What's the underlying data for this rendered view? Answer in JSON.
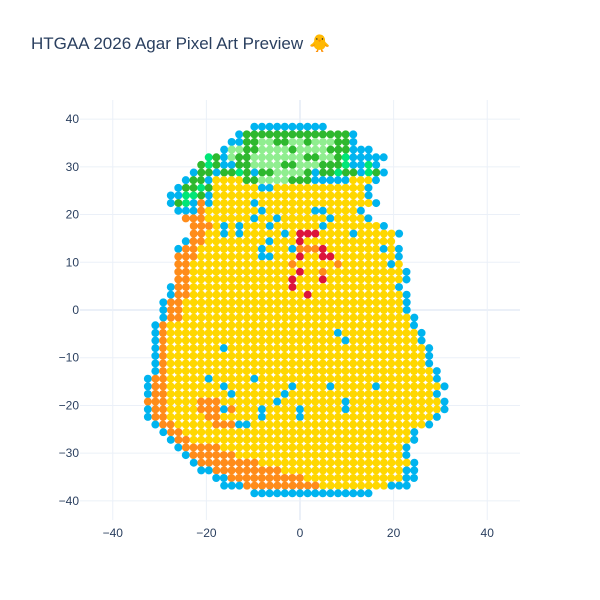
{
  "title": "HTGAA 2026 Agar Pixel Art Preview",
  "title_emoji": "🐥",
  "chart_data": {
    "type": "scatter",
    "title": "HTGAA 2026 Agar Pixel Art Preview",
    "xlabel": "",
    "ylabel": "",
    "xlim": [
      -47,
      47
    ],
    "ylim": [
      -44,
      44
    ],
    "xticks": [
      -40,
      -20,
      0,
      20,
      40
    ],
    "yticks": [
      -40,
      -30,
      -20,
      -10,
      0,
      10,
      20,
      30,
      40
    ],
    "grid": true,
    "grid_step": 1.625,
    "palette": {
      "B": "#00b4ef",
      "Y": "#ffd700",
      "O": "#ff8c1a",
      "R": "#dc143c",
      "G": "#2eb82e",
      "L": "#90ee90",
      "S": "#00e676"
    },
    "colors_legend": {
      "B": "deep sky blue",
      "Y": "gold",
      "O": "orange",
      "R": "crimson",
      "G": "green",
      "L": "light green",
      "S": "spring green"
    },
    "rows": [
      {
        "y": 38.4,
        "x0": -9.75,
        "cells": "BBBBBBBBBB"
      },
      {
        "y": 36.8,
        "x0": -13.0,
        "cells": "BGGGGGGGGGGGGGGB"
      },
      {
        "y": 35.2,
        "x0": -14.6,
        "cells": "BBGGLLGGLLGLLLGGB"
      },
      {
        "y": 33.6,
        "x0": -16.2,
        "cells": "BLLGGLLLLGLLLLGGGBBB"
      },
      {
        "y": 32.0,
        "x0": -19.5,
        "cells": "SGBLGGLLLLLLLGGLLGSBBBBB"
      },
      {
        "y": 30.4,
        "x0": -21.1,
        "cells": "GSGBBGGLLLLGGLLLGGGSBBSB"
      },
      {
        "y": 28.8,
        "x0": -22.7,
        "cells": "BGGBGGSGBGGLLLLGBGGSGGBSGB"
      },
      {
        "y": 27.2,
        "x0": -24.4,
        "cells": "BGGBYYYYGGLLLLGGGBBBBBYYYB"
      },
      {
        "y": 25.6,
        "x0": -26.0,
        "cells": "BGGSGYYYYYYBBYYYYYYYYYYYYB"
      },
      {
        "y": 24.0,
        "x0": -27.6,
        "cells": "BBSSGBYYYYYYYYYYYYYYYYYYYYB"
      },
      {
        "y": 22.4,
        "x0": -27.6,
        "cells": "BGSBOBYYYYYBYYYYYYYYYYYYYYYB"
      },
      {
        "y": 20.8,
        "x0": -26.0,
        "cells": "BBBOYYYYYYYBYYYYYYBBYYYYB"
      },
      {
        "y": 19.2,
        "x0": -24.4,
        "cells": "OOOYYYYYYBYYBYYYYYYBYYYYB"
      },
      {
        "y": 17.6,
        "x0": -22.7,
        "cells": "OOOYBYBYYYBYYYYYYBYYYYYYYB"
      },
      {
        "y": 16.0,
        "x0": -22.7,
        "cells": "OOYYBYBYYYYYBYRRRYYYYBYYYYYB"
      },
      {
        "y": 14.4,
        "x0": -24.4,
        "cells": "BOOYYYYYYYYBYYYRYYYYYYYYYYYY"
      },
      {
        "y": 12.8,
        "x0": -26.0,
        "cells": "BOOYYYYYYYYBYYYBOOORYYYYYYYBYB"
      },
      {
        "y": 11.2,
        "x0": -26.0,
        "cells": "OOOYYYYYYYYBBYYYRYYRRYYYYYYYYB"
      },
      {
        "y": 9.6,
        "x0": -26.0,
        "cells": "OOYYYYYYYYYYYYYOYYYYYOYYYYYYBY"
      },
      {
        "y": 8.0,
        "x0": -26.0,
        "cells": "OOYYYYYYYYYYYYYYRYYOYYYYYYYYYYB"
      },
      {
        "y": 6.4,
        "x0": -26.0,
        "cells": "OOYYYYYYYYYYYYYRYYYRYYYYYYYYYYB"
      },
      {
        "y": 4.8,
        "x0": -27.6,
        "cells": "BOOYYYYYYYYYYYYYRYYYYYYYYYYYYYB"
      },
      {
        "y": 3.2,
        "x0": -27.6,
        "cells": "BOOYYYYYYYYYYYYYYYRYYYYYYYYYYYYB"
      },
      {
        "y": 1.6,
        "x0": -29.2,
        "cells": "BOOYYYYYYYYYYYYYYYYYYYYYYYYYYYYYB"
      },
      {
        "y": 0.0,
        "x0": -29.2,
        "cells": "BOOYYYYYYYYYYYYYYYYYYYYYYYYYYYYYB"
      },
      {
        "y": -1.6,
        "x0": -29.2,
        "cells": "BOOYYYYYYYYYYYYYYYYYYYYYYYYYYYYYYB"
      },
      {
        "y": -3.2,
        "x0": -30.9,
        "cells": "BOYYYYYYYYYYYYYYYYYYYYYYYYYYYYYYYYB"
      },
      {
        "y": -4.8,
        "x0": -30.9,
        "cells": "BOYYYYYYYYYYYYYYYYYYYYYYBYYYYYYYYYYB"
      },
      {
        "y": -6.4,
        "x0": -30.9,
        "cells": "BOYYYYYYYYYYYYYYYYYYYYYYYBYYYYYYYYYB"
      },
      {
        "y": -8.0,
        "x0": -30.9,
        "cells": "BOYYYYYYYBYYYYYYYYYYYYYYYYYYYYYYYYYYB"
      },
      {
        "y": -9.6,
        "x0": -30.9,
        "cells": "BOYYYYYYYYYYYYYYYYYYYYYYYYYYYYYYYYYYB"
      },
      {
        "y": -11.2,
        "x0": -30.9,
        "cells": "BOYYYYYYYYYYYYYYYYYYYYYYYYYYYYYYYYYYB"
      },
      {
        "y": -12.8,
        "x0": -30.9,
        "cells": "BOYYYYYYYYYYYYYYYYYYYYYYYYYYYYYYYYYYYB"
      },
      {
        "y": -14.4,
        "x0": -32.5,
        "cells": "BOOYYYYYBYYYYYBYYYYYYYYYYYYYYYYYYYYYYYB"
      },
      {
        "y": -16.0,
        "x0": -32.5,
        "cells": "BOOYYYYYYYBYYYYYYYYBYYYYBYYYYYBYYYYYYYYB"
      },
      {
        "y": -17.6,
        "x0": -32.5,
        "cells": "BOOYYYYYYYYBYYYYYYBYYYYYYYYYYYYYYYYYYYB"
      },
      {
        "y": -19.2,
        "x0": -32.5,
        "cells": "OOOYYYYOOOYYYYYYYBYYYYYYYYBYYYYYYYYYYYYB"
      },
      {
        "y": -20.8,
        "x0": -32.5,
        "cells": "BOOYYYYOOOBOYYYBYYYYBYYYYYBYYYYYYYYYYYYB"
      },
      {
        "y": -22.4,
        "x0": -32.5,
        "cells": "BOOYYYYYOOYYYYYBYYYYBYYYYYYYYYYYYYYYYYB"
      },
      {
        "y": -24.0,
        "x0": -30.9,
        "cells": "BOOYYYYYOOOBBYYYYYYYYYYYYYYYYYYYYYYYB"
      },
      {
        "y": -25.6,
        "x0": -29.2,
        "cells": "BOOYYYYYYYYYYYYYYYYYYYYYYYYYYYYYYB"
      },
      {
        "y": -27.2,
        "x0": -27.6,
        "cells": "BOOYYYYYYYYYYYYYYYYYYYYYYYYYYYYYB"
      },
      {
        "y": -28.8,
        "x0": -26.0,
        "cells": "BOOOOOYYYYYYYYYYYYYYYYYYYYYYYYB"
      },
      {
        "y": -30.4,
        "x0": -24.4,
        "cells": "BOOOOOOYYYYYYYYYYYYYYYYYYYYYYB"
      },
      {
        "y": -32.0,
        "x0": -22.7,
        "cells": "BOOOOOOOOYYYYYYYYYYYYYYYYYYYYB"
      },
      {
        "y": -33.6,
        "x0": -21.1,
        "cells": "BBOOOOOOOOOYYYYYYYYYYYYYYYYBB"
      },
      {
        "y": -35.2,
        "x0": -17.9,
        "cells": "BBOOOOOOOOOOYYYYYYYYYYYYYBB"
      },
      {
        "y": -36.8,
        "x0": -16.2,
        "cells": "BBBOOOOOOOOOOYYYYYYYYYBBB"
      },
      {
        "y": -38.4,
        "x0": -9.75,
        "cells": "BBBBBBBBBBBBBBBB"
      }
    ]
  }
}
